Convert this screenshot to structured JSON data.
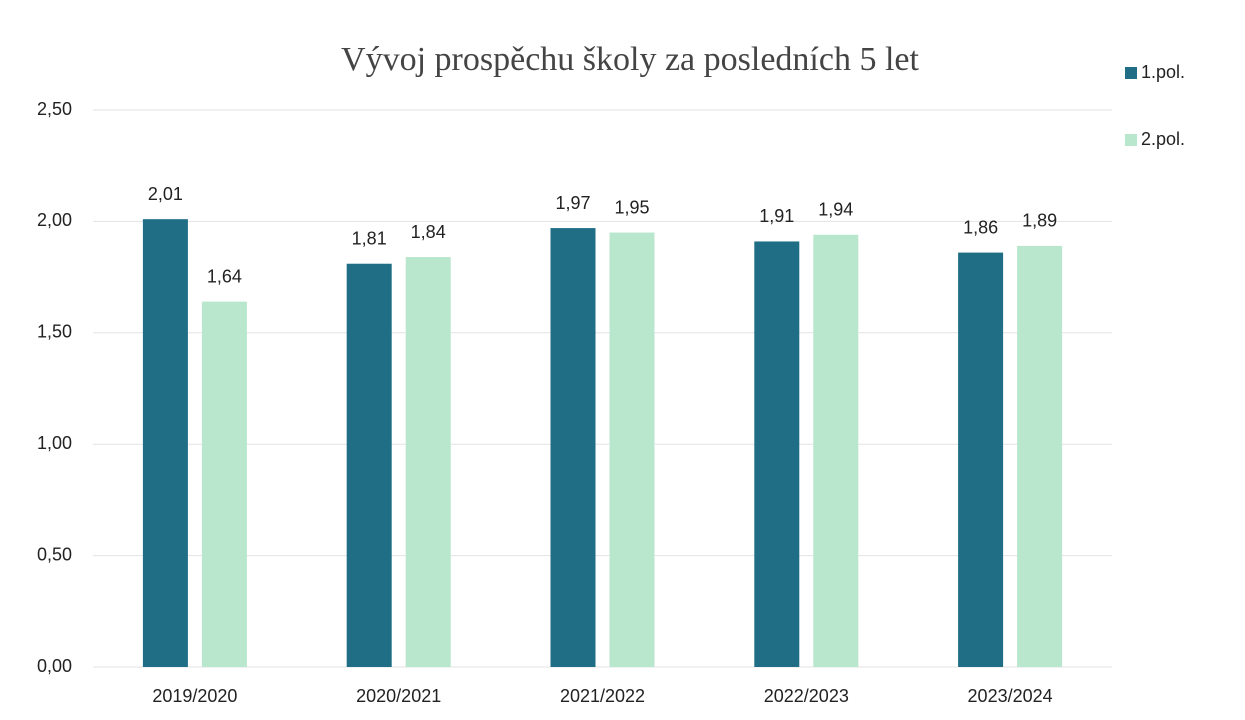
{
  "chart_data": {
    "type": "bar",
    "title": "Vývoj prospěchu školy za posledních 5 let",
    "categories": [
      "2019/2020",
      "2020/2021",
      "2021/2022",
      "2022/2023",
      "2023/2024"
    ],
    "series": [
      {
        "name": "1.pol.",
        "color": "#1f6e85",
        "values": [
          2.01,
          1.81,
          1.97,
          1.91,
          1.86
        ],
        "value_labels": [
          "2,01",
          "1,81",
          "1,97",
          "1,91",
          "1,86"
        ]
      },
      {
        "name": "2.pol.",
        "color": "#b9e7cd",
        "values": [
          1.64,
          1.84,
          1.95,
          1.94,
          1.89
        ],
        "value_labels": [
          "1,64",
          "1,84",
          "1,95",
          "1,94",
          "1,89"
        ]
      }
    ],
    "ylim": [
      0,
      2.5
    ],
    "yticks": [
      {
        "value": 0,
        "label": "0,00"
      },
      {
        "value": 0.5,
        "label": "0,50"
      },
      {
        "value": 1,
        "label": "1,00"
      },
      {
        "value": 1.5,
        "label": "1,50"
      },
      {
        "value": 2,
        "label": "2,00"
      },
      {
        "value": 2.5,
        "label": "2,50"
      }
    ],
    "grid": true,
    "legend": "right"
  }
}
